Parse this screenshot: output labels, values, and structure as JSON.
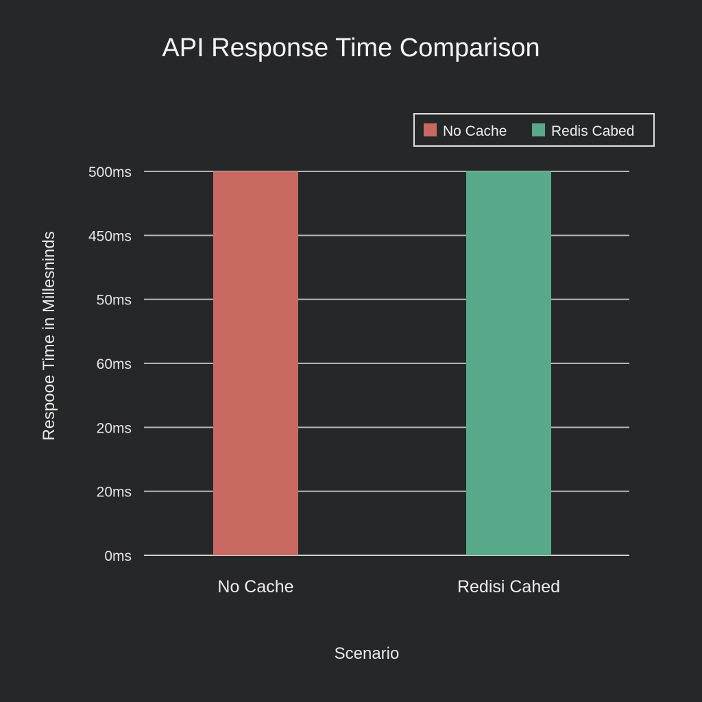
{
  "chart_data": {
    "type": "bar",
    "title": "API Response Time Comparison",
    "xlabel": "Scenario",
    "ylabel": "Respooe Time in Millesninds",
    "categories": [
      "No Cache",
      "Redisi Cahed"
    ],
    "values": [
      500,
      500
    ],
    "y_tick_labels": [
      "0ms",
      "20ms",
      "20ms",
      "60ms",
      "50ms",
      "450ms",
      "500ms"
    ],
    "ylim": [
      0,
      500
    ],
    "grid": true,
    "legend_position": "top-right",
    "legend": [
      {
        "label": "No Cache",
        "color": "#c96a62"
      },
      {
        "label": "Redis Cabed",
        "color": "#58a98a"
      }
    ],
    "bar_colors": [
      "#c96a62",
      "#58a98a"
    ]
  }
}
